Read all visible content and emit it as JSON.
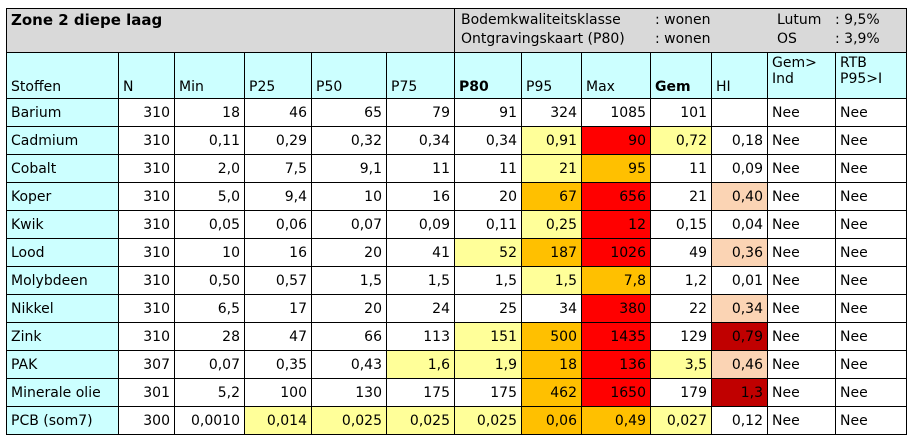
{
  "title": "Zone 2 diepe laag",
  "info": {
    "label1": "Bodemkwaliteitsklasse",
    "value1": ": wonen",
    "label2": "Ontgravingskaart (P80)",
    "value2": ": wonen",
    "lutum_label": "Lutum",
    "lutum_value": ": 9,5%",
    "os_label": "OS",
    "os_value": ": 3,9%"
  },
  "columns": [
    "Stoffen",
    "N",
    "Min",
    "P25",
    "P50",
    "P75",
    "P80",
    "P95",
    "Max",
    "Gem",
    "HI",
    "Gem>\nInd",
    "RTB\nP95>I"
  ],
  "colors": {
    "none": "#ffffff",
    "y": "#ffff99",
    "o": "#ffc000",
    "r": "#ff0000",
    "p": "#fbd4b4",
    "dr": "#c00000"
  },
  "rows": [
    {
      "cells": [
        "Barium",
        "310",
        "18",
        "46",
        "65",
        "79",
        "91",
        "324",
        "1085",
        "101",
        "",
        "Nee",
        "Nee"
      ],
      "colors": [
        "",
        "",
        "",
        "",
        "",
        "",
        "",
        "",
        "",
        "",
        "",
        "",
        ""
      ]
    },
    {
      "cells": [
        "Cadmium",
        "310",
        "0,11",
        "0,29",
        "0,32",
        "0,34",
        "0,34",
        "0,91",
        "90",
        "0,72",
        "0,18",
        "Nee",
        "Nee"
      ],
      "colors": [
        "",
        "",
        "",
        "",
        "",
        "",
        "",
        "y",
        "r",
        "y",
        "",
        "",
        ""
      ]
    },
    {
      "cells": [
        "Cobalt",
        "310",
        "2,0",
        "7,5",
        "9,1",
        "11",
        "11",
        "21",
        "95",
        "11",
        "0,09",
        "Nee",
        "Nee"
      ],
      "colors": [
        "",
        "",
        "",
        "",
        "",
        "",
        "",
        "y",
        "o",
        "",
        "",
        "",
        ""
      ]
    },
    {
      "cells": [
        "Koper",
        "310",
        "5,0",
        "9,4",
        "10",
        "16",
        "20",
        "67",
        "656",
        "21",
        "0,40",
        "Nee",
        "Nee"
      ],
      "colors": [
        "",
        "",
        "",
        "",
        "",
        "",
        "",
        "o",
        "r",
        "",
        "p",
        "",
        ""
      ]
    },
    {
      "cells": [
        "Kwik",
        "310",
        "0,05",
        "0,06",
        "0,07",
        "0,09",
        "0,11",
        "0,25",
        "12",
        "0,15",
        "0,04",
        "Nee",
        "Nee"
      ],
      "colors": [
        "",
        "",
        "",
        "",
        "",
        "",
        "",
        "y",
        "r",
        "",
        "",
        "",
        ""
      ]
    },
    {
      "cells": [
        "Lood",
        "310",
        "10",
        "16",
        "20",
        "41",
        "52",
        "187",
        "1026",
        "49",
        "0,36",
        "Nee",
        "Nee"
      ],
      "colors": [
        "",
        "",
        "",
        "",
        "",
        "",
        "y",
        "o",
        "r",
        "",
        "p",
        "",
        ""
      ]
    },
    {
      "cells": [
        "Molybdeen",
        "310",
        "0,50",
        "0,57",
        "1,5",
        "1,5",
        "1,5",
        "1,5",
        "7,8",
        "1,2",
        "0,01",
        "Nee",
        "Nee"
      ],
      "colors": [
        "",
        "",
        "",
        "",
        "",
        "",
        "",
        "y",
        "o",
        "",
        "",
        "",
        ""
      ]
    },
    {
      "cells": [
        "Nikkel",
        "310",
        "6,5",
        "17",
        "20",
        "24",
        "25",
        "34",
        "380",
        "22",
        "0,34",
        "Nee",
        "Nee"
      ],
      "colors": [
        "",
        "",
        "",
        "",
        "",
        "",
        "",
        "",
        "r",
        "",
        "p",
        "",
        ""
      ]
    },
    {
      "cells": [
        "Zink",
        "310",
        "28",
        "47",
        "66",
        "113",
        "151",
        "500",
        "1435",
        "129",
        "0,79",
        "Nee",
        "Nee"
      ],
      "colors": [
        "",
        "",
        "",
        "",
        "",
        "",
        "y",
        "o",
        "r",
        "",
        "dr",
        "",
        ""
      ]
    },
    {
      "cells": [
        "PAK",
        "307",
        "0,07",
        "0,35",
        "0,43",
        "1,6",
        "1,9",
        "18",
        "136",
        "3,5",
        "0,46",
        "Nee",
        "Nee"
      ],
      "colors": [
        "",
        "",
        "",
        "",
        "",
        "y",
        "y",
        "o",
        "r",
        "y",
        "p",
        "",
        ""
      ]
    },
    {
      "cells": [
        "Minerale olie",
        "301",
        "5,2",
        "100",
        "130",
        "175",
        "175",
        "462",
        "1650",
        "179",
        "1,3",
        "Nee",
        "Nee"
      ],
      "colors": [
        "",
        "",
        "",
        "",
        "",
        "",
        "",
        "o",
        "r",
        "",
        "dr",
        "",
        ""
      ]
    },
    {
      "cells": [
        "PCB (som7)",
        "300",
        "0,0010",
        "0,014",
        "0,025",
        "0,025",
        "0,025",
        "0,06",
        "0,49",
        "0,027",
        "0,12",
        "Nee",
        "Nee"
      ],
      "colors": [
        "",
        "",
        "",
        "y",
        "y",
        "y",
        "y",
        "o",
        "o",
        "y",
        "",
        "",
        ""
      ]
    }
  ]
}
